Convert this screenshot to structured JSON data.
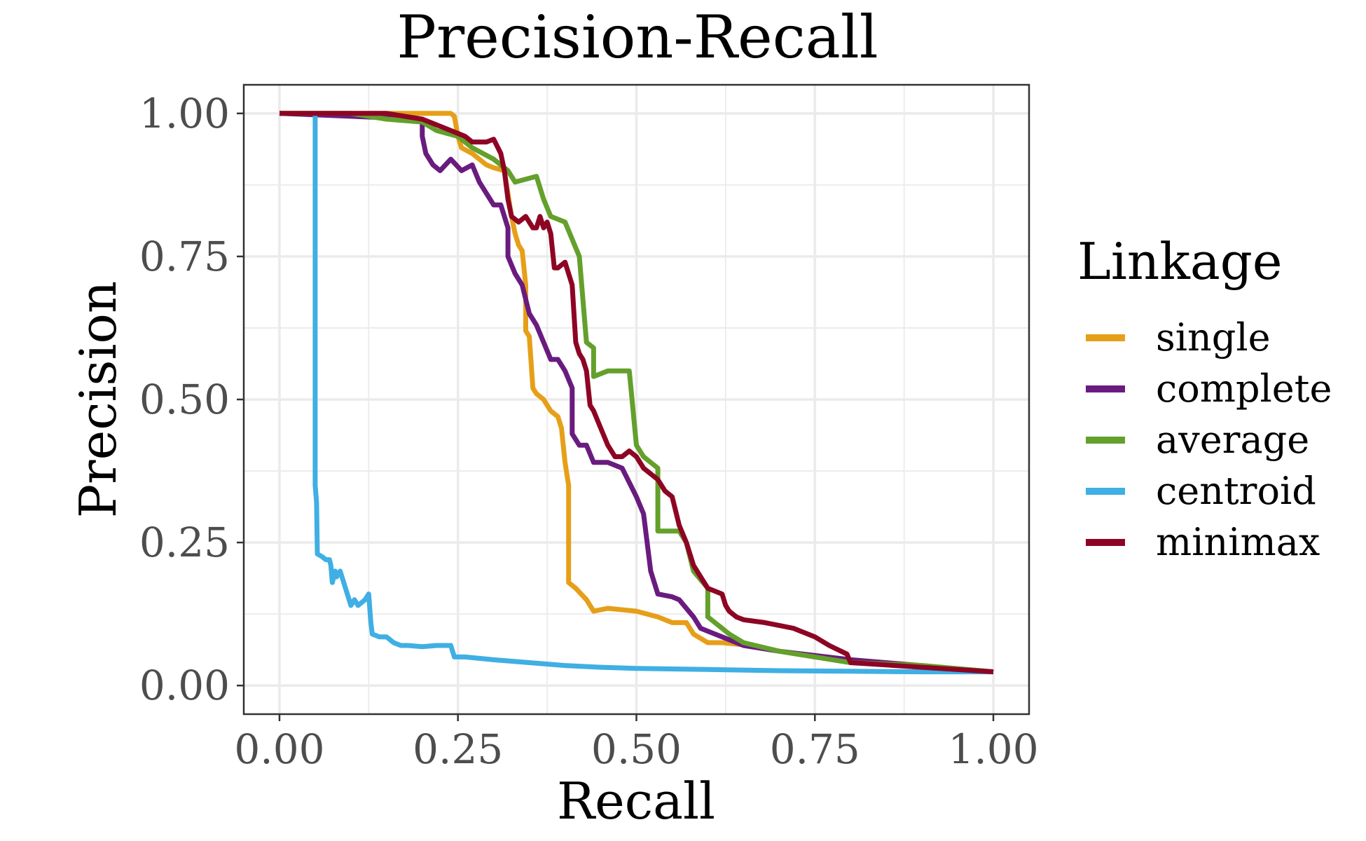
{
  "chart_data": {
    "type": "line",
    "title": "Precision-Recall",
    "xlabel": "Recall",
    "ylabel": "Precision",
    "xlim": [
      -0.05,
      1.05
    ],
    "ylim": [
      -0.05,
      1.05
    ],
    "x_ticks": [
      0,
      0.25,
      0.5,
      0.75,
      1
    ],
    "x_tick_labels": [
      "0.00",
      "0.25",
      "0.50",
      "0.75",
      "1.00"
    ],
    "y_ticks": [
      0,
      0.25,
      0.5,
      0.75,
      1
    ],
    "y_tick_labels": [
      "0.00",
      "0.25",
      "0.50",
      "0.75",
      "1.00"
    ],
    "minor_ticks": [
      0.125,
      0.375,
      0.625,
      0.875
    ],
    "grid": true,
    "legend": {
      "title": "Linkage",
      "position": "right"
    },
    "series": [
      {
        "name": "single",
        "color": "#E69F19",
        "points": [
          [
            0,
            1
          ],
          [
            0.24,
            1
          ],
          [
            0.245,
            0.995
          ],
          [
            0.25,
            0.96
          ],
          [
            0.255,
            0.94
          ],
          [
            0.27,
            0.93
          ],
          [
            0.29,
            0.91
          ],
          [
            0.3,
            0.905
          ],
          [
            0.315,
            0.9
          ],
          [
            0.32,
            0.86
          ],
          [
            0.325,
            0.82
          ],
          [
            0.33,
            0.79
          ],
          [
            0.335,
            0.77
          ],
          [
            0.34,
            0.76
          ],
          [
            0.345,
            0.7
          ],
          [
            0.345,
            0.62
          ],
          [
            0.35,
            0.61
          ],
          [
            0.355,
            0.52
          ],
          [
            0.36,
            0.51
          ],
          [
            0.37,
            0.5
          ],
          [
            0.38,
            0.48
          ],
          [
            0.39,
            0.47
          ],
          [
            0.395,
            0.45
          ],
          [
            0.4,
            0.39
          ],
          [
            0.405,
            0.35
          ],
          [
            0.405,
            0.18
          ],
          [
            0.415,
            0.17
          ],
          [
            0.43,
            0.15
          ],
          [
            0.44,
            0.13
          ],
          [
            0.46,
            0.135
          ],
          [
            0.5,
            0.13
          ],
          [
            0.53,
            0.12
          ],
          [
            0.55,
            0.11
          ],
          [
            0.57,
            0.11
          ],
          [
            0.58,
            0.09
          ],
          [
            0.6,
            0.075
          ],
          [
            0.62,
            0.075
          ],
          [
            0.66,
            0.07
          ],
          [
            0.7,
            0.06
          ],
          [
            0.75,
            0.05
          ],
          [
            0.8,
            0.045
          ],
          [
            0.9,
            0.035
          ],
          [
            1,
            0.024
          ]
        ]
      },
      {
        "name": "complete",
        "color": "#6A1B7F",
        "points": [
          [
            0,
            1
          ],
          [
            0.1,
            0.995
          ],
          [
            0.2,
            0.99
          ],
          [
            0.2,
            0.96
          ],
          [
            0.205,
            0.93
          ],
          [
            0.21,
            0.92
          ],
          [
            0.215,
            0.91
          ],
          [
            0.225,
            0.9
          ],
          [
            0.24,
            0.92
          ],
          [
            0.255,
            0.9
          ],
          [
            0.27,
            0.91
          ],
          [
            0.28,
            0.88
          ],
          [
            0.29,
            0.86
          ],
          [
            0.3,
            0.84
          ],
          [
            0.31,
            0.84
          ],
          [
            0.32,
            0.8
          ],
          [
            0.32,
            0.75
          ],
          [
            0.33,
            0.72
          ],
          [
            0.34,
            0.7
          ],
          [
            0.35,
            0.65
          ],
          [
            0.36,
            0.63
          ],
          [
            0.37,
            0.6
          ],
          [
            0.38,
            0.57
          ],
          [
            0.39,
            0.57
          ],
          [
            0.4,
            0.55
          ],
          [
            0.41,
            0.52
          ],
          [
            0.41,
            0.44
          ],
          [
            0.42,
            0.42
          ],
          [
            0.43,
            0.42
          ],
          [
            0.44,
            0.39
          ],
          [
            0.46,
            0.39
          ],
          [
            0.48,
            0.38
          ],
          [
            0.5,
            0.33
          ],
          [
            0.51,
            0.3
          ],
          [
            0.52,
            0.2
          ],
          [
            0.53,
            0.16
          ],
          [
            0.55,
            0.155
          ],
          [
            0.56,
            0.15
          ],
          [
            0.58,
            0.12
          ],
          [
            0.59,
            0.1
          ],
          [
            0.6,
            0.095
          ],
          [
            0.62,
            0.085
          ],
          [
            0.65,
            0.07
          ],
          [
            0.7,
            0.06
          ],
          [
            0.8,
            0.045
          ],
          [
            1,
            0.024
          ]
        ]
      },
      {
        "name": "average",
        "color": "#63A02C",
        "points": [
          [
            0,
            1
          ],
          [
            0.1,
            1
          ],
          [
            0.15,
            0.99
          ],
          [
            0.2,
            0.985
          ],
          [
            0.22,
            0.97
          ],
          [
            0.25,
            0.96
          ],
          [
            0.27,
            0.94
          ],
          [
            0.3,
            0.92
          ],
          [
            0.32,
            0.9
          ],
          [
            0.33,
            0.88
          ],
          [
            0.36,
            0.89
          ],
          [
            0.37,
            0.85
          ],
          [
            0.38,
            0.82
          ],
          [
            0.4,
            0.81
          ],
          [
            0.41,
            0.78
          ],
          [
            0.42,
            0.75
          ],
          [
            0.43,
            0.6
          ],
          [
            0.44,
            0.59
          ],
          [
            0.44,
            0.54
          ],
          [
            0.46,
            0.55
          ],
          [
            0.49,
            0.55
          ],
          [
            0.5,
            0.42
          ],
          [
            0.51,
            0.4
          ],
          [
            0.52,
            0.39
          ],
          [
            0.53,
            0.38
          ],
          [
            0.53,
            0.27
          ],
          [
            0.56,
            0.27
          ],
          [
            0.57,
            0.25
          ],
          [
            0.58,
            0.2
          ],
          [
            0.6,
            0.17
          ],
          [
            0.6,
            0.12
          ],
          [
            0.62,
            0.1
          ],
          [
            0.63,
            0.09
          ],
          [
            0.65,
            0.075
          ],
          [
            0.7,
            0.06
          ],
          [
            0.75,
            0.05
          ],
          [
            0.8,
            0.04
          ],
          [
            0.9,
            0.035
          ],
          [
            1,
            0.024
          ]
        ]
      },
      {
        "name": "centroid",
        "color": "#3FAFE4",
        "points": [
          [
            0.05,
            1
          ],
          [
            0.05,
            0.35
          ],
          [
            0.052,
            0.32
          ],
          [
            0.053,
            0.23
          ],
          [
            0.06,
            0.225
          ],
          [
            0.065,
            0.22
          ],
          [
            0.07,
            0.22
          ],
          [
            0.072,
            0.21
          ],
          [
            0.074,
            0.18
          ],
          [
            0.078,
            0.2
          ],
          [
            0.08,
            0.19
          ],
          [
            0.085,
            0.2
          ],
          [
            0.09,
            0.18
          ],
          [
            0.095,
            0.16
          ],
          [
            0.1,
            0.14
          ],
          [
            0.105,
            0.15
          ],
          [
            0.11,
            0.14
          ],
          [
            0.12,
            0.15
          ],
          [
            0.125,
            0.16
          ],
          [
            0.128,
            0.11
          ],
          [
            0.13,
            0.09
          ],
          [
            0.14,
            0.085
          ],
          [
            0.15,
            0.085
          ],
          [
            0.16,
            0.075
          ],
          [
            0.17,
            0.07
          ],
          [
            0.18,
            0.07
          ],
          [
            0.2,
            0.068
          ],
          [
            0.22,
            0.07
          ],
          [
            0.24,
            0.07
          ],
          [
            0.245,
            0.05
          ],
          [
            0.26,
            0.05
          ],
          [
            0.3,
            0.045
          ],
          [
            0.35,
            0.04
          ],
          [
            0.4,
            0.035
          ],
          [
            0.45,
            0.032
          ],
          [
            0.5,
            0.03
          ],
          [
            0.6,
            0.028
          ],
          [
            0.7,
            0.026
          ],
          [
            0.8,
            0.025
          ],
          [
            0.9,
            0.024
          ],
          [
            1,
            0.024
          ]
        ]
      },
      {
        "name": "minimax",
        "color": "#8E0524",
        "points": [
          [
            0,
            1
          ],
          [
            0.1,
            1
          ],
          [
            0.15,
            1
          ],
          [
            0.2,
            0.99
          ],
          [
            0.22,
            0.98
          ],
          [
            0.24,
            0.97
          ],
          [
            0.26,
            0.96
          ],
          [
            0.27,
            0.95
          ],
          [
            0.29,
            0.95
          ],
          [
            0.3,
            0.955
          ],
          [
            0.31,
            0.93
          ],
          [
            0.315,
            0.9
          ],
          [
            0.32,
            0.85
          ],
          [
            0.325,
            0.82
          ],
          [
            0.335,
            0.81
          ],
          [
            0.345,
            0.82
          ],
          [
            0.355,
            0.8
          ],
          [
            0.36,
            0.8
          ],
          [
            0.365,
            0.82
          ],
          [
            0.37,
            0.8
          ],
          [
            0.375,
            0.81
          ],
          [
            0.38,
            0.79
          ],
          [
            0.385,
            0.73
          ],
          [
            0.39,
            0.73
          ],
          [
            0.4,
            0.74
          ],
          [
            0.41,
            0.7
          ],
          [
            0.415,
            0.6
          ],
          [
            0.42,
            0.58
          ],
          [
            0.425,
            0.57
          ],
          [
            0.43,
            0.55
          ],
          [
            0.435,
            0.49
          ],
          [
            0.44,
            0.48
          ],
          [
            0.45,
            0.45
          ],
          [
            0.46,
            0.42
          ],
          [
            0.47,
            0.4
          ],
          [
            0.48,
            0.4
          ],
          [
            0.49,
            0.41
          ],
          [
            0.5,
            0.4
          ],
          [
            0.51,
            0.38
          ],
          [
            0.52,
            0.37
          ],
          [
            0.53,
            0.36
          ],
          [
            0.54,
            0.34
          ],
          [
            0.55,
            0.33
          ],
          [
            0.56,
            0.28
          ],
          [
            0.57,
            0.25
          ],
          [
            0.58,
            0.21
          ],
          [
            0.59,
            0.19
          ],
          [
            0.6,
            0.17
          ],
          [
            0.62,
            0.16
          ],
          [
            0.625,
            0.14
          ],
          [
            0.63,
            0.13
          ],
          [
            0.64,
            0.12
          ],
          [
            0.65,
            0.115
          ],
          [
            0.68,
            0.11
          ],
          [
            0.72,
            0.1
          ],
          [
            0.75,
            0.085
          ],
          [
            0.77,
            0.07
          ],
          [
            0.795,
            0.055
          ],
          [
            0.8,
            0.04
          ],
          [
            0.9,
            0.032
          ],
          [
            1,
            0.024
          ]
        ]
      }
    ]
  }
}
